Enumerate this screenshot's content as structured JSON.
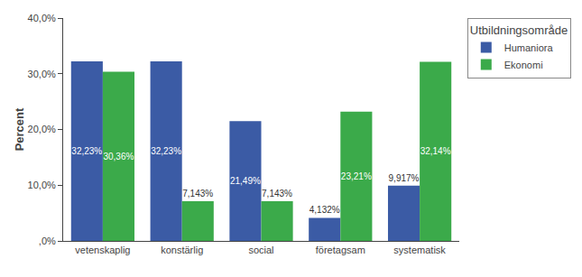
{
  "chart_data": {
    "type": "bar",
    "categories": [
      "vetenskaplig",
      "konstärlig",
      "social",
      "företagsam",
      "systematisk"
    ],
    "series": [
      {
        "name": "Humaniora",
        "color": "#3B5BA5",
        "values": [
          32.23,
          32.23,
          21.49,
          4.132,
          9.917
        ],
        "value_labels": [
          "32,23%",
          "32,23%",
          "21,49%",
          "4,132%",
          "9,917%"
        ]
      },
      {
        "name": "Ekonomi",
        "color": "#3BAA4A",
        "values": [
          30.36,
          7.143,
          7.143,
          23.21,
          32.14
        ],
        "value_labels": [
          "30,36%",
          "7,143%",
          "7,143%",
          "23,21%",
          "32,14%"
        ]
      }
    ],
    "ylabel": "Percent",
    "ylim": [
      0,
      40
    ],
    "yticks": [
      {
        "value": 0,
        "label": ",0%"
      },
      {
        "value": 10,
        "label": "10,0%"
      },
      {
        "value": 20,
        "label": "20,0%"
      },
      {
        "value": 30,
        "label": "30,0%"
      },
      {
        "value": 40,
        "label": "40,0%"
      }
    ],
    "legend_title": "Utbildningsområde",
    "legend": "upper right",
    "grid": false,
    "data_labels": true
  }
}
